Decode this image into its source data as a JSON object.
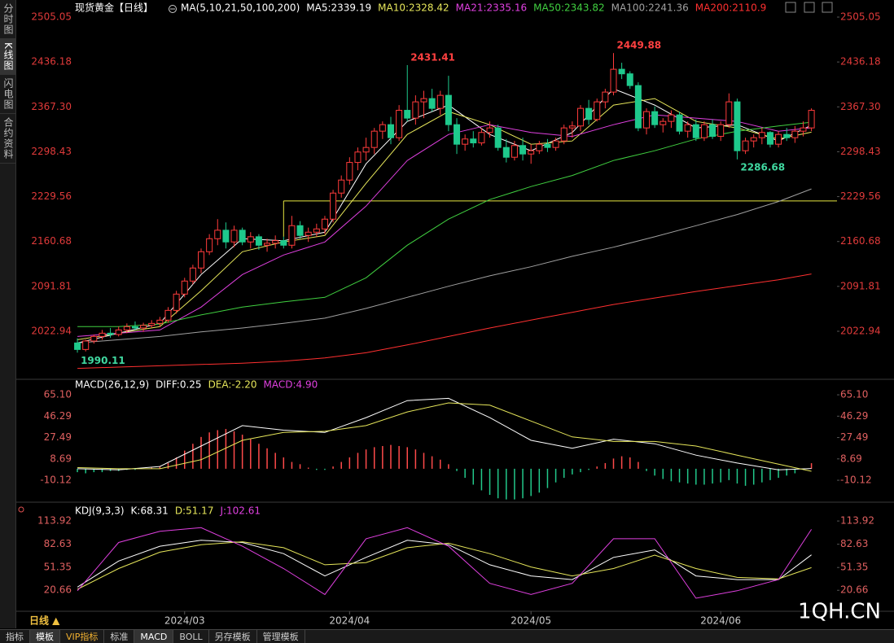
{
  "ui": {
    "sidebar_tabs": [
      "分时图",
      "K线图",
      "闪电图",
      "合约资料"
    ],
    "period_button": "日线 ▲",
    "bottom_tabs": [
      "指标",
      "模板",
      "VIP指标",
      "标准",
      "MACD",
      "BOLL",
      "另存模板",
      "管理模板"
    ],
    "watermark": "1QH.CN"
  },
  "chart_data": [
    {
      "type": "candlestick",
      "title": "现货黄金【日线】",
      "indicator": "MA(5,10,21,50,100,200)",
      "up_color": "#ff3b3b",
      "down_color": "#1ec98c",
      "xlim": [
        -0.5,
        92.1
      ],
      "xticks": [
        {
          "value": 13,
          "label": "2024/03"
        },
        {
          "value": 33,
          "label": "2024/04"
        },
        {
          "value": 55,
          "label": "2024/05"
        },
        {
          "value": 78,
          "label": "2024/06"
        }
      ],
      "ylim": [
        1950.5,
        2518.8
      ],
      "yticks": [
        2505.05,
        2436.18,
        {
          "value": 2367.3,
          "label": "2367.30"
        },
        2298.43,
        2229.56,
        2160.68,
        2091.81,
        2022.94
      ],
      "open": [
        2005,
        1995,
        2008,
        2015,
        2020,
        2018,
        2025,
        2030,
        2028,
        2032,
        2035,
        2040,
        2055,
        2080,
        2100,
        2120,
        2145,
        2165,
        2178,
        2160,
        2178,
        2160,
        2168,
        2155,
        2158,
        2162,
        2155,
        2185,
        2170,
        2175,
        2180,
        2195,
        2235,
        2255,
        2282,
        2298,
        2305,
        2330,
        2340,
        2320,
        2362,
        2350,
        2375,
        2380,
        2365,
        2385,
        2340,
        2310,
        2318,
        2312,
        2328,
        2335,
        2305,
        2290,
        2308,
        2295,
        2300,
        2310,
        2305,
        2315,
        2335,
        2338,
        2365,
        2348,
        2375,
        2390,
        2425,
        2418,
        2400,
        2335,
        2360,
        2340,
        2345,
        2355,
        2330,
        2340,
        2320,
        2340,
        2322,
        2340,
        2375,
        2300,
        2315,
        2320,
        2328,
        2310,
        2325,
        2320,
        2330,
        2335
      ],
      "high": [
        2012,
        2010,
        2018,
        2025,
        2028,
        2030,
        2035,
        2038,
        2036,
        2040,
        2045,
        2060,
        2085,
        2105,
        2125,
        2150,
        2172,
        2195,
        2190,
        2185,
        2182,
        2175,
        2172,
        2165,
        2170,
        2168,
        2200,
        2192,
        2182,
        2188,
        2200,
        2240,
        2262,
        2290,
        2305,
        2320,
        2335,
        2345,
        2352,
        2370,
        2431.41,
        2385,
        2392,
        2395,
        2392,
        2415,
        2350,
        2325,
        2330,
        2335,
        2345,
        2340,
        2318,
        2315,
        2320,
        2310,
        2315,
        2318,
        2320,
        2340,
        2345,
        2370,
        2378,
        2380,
        2395,
        2449.88,
        2435,
        2422,
        2405,
        2365,
        2368,
        2350,
        2362,
        2360,
        2345,
        2348,
        2345,
        2348,
        2345,
        2388,
        2380,
        2320,
        2325,
        2335,
        2330,
        2330,
        2335,
        2338,
        2345,
        2365
      ],
      "low": [
        1990.11,
        1992,
        2004,
        2010,
        2013,
        2015,
        2020,
        2024,
        2022,
        2028,
        2030,
        2036,
        2050,
        2075,
        2095,
        2112,
        2140,
        2155,
        2150,
        2152,
        2155,
        2150,
        2148,
        2145,
        2150,
        2150,
        2150,
        2165,
        2160,
        2168,
        2172,
        2190,
        2228,
        2248,
        2270,
        2285,
        2295,
        2318,
        2310,
        2315,
        2345,
        2340,
        2350,
        2360,
        2355,
        2330,
        2295,
        2300,
        2305,
        2308,
        2320,
        2300,
        2282,
        2285,
        2285,
        2280,
        2295,
        2298,
        2300,
        2310,
        2320,
        2330,
        2340,
        2345,
        2365,
        2385,
        2410,
        2395,
        2330,
        2325,
        2335,
        2328,
        2335,
        2325,
        2320,
        2315,
        2315,
        2318,
        2315,
        2335,
        2286.68,
        2295,
        2305,
        2310,
        2305,
        2305,
        2315,
        2312,
        2322,
        2330
      ],
      "close": [
        1995,
        2008,
        2015,
        2020,
        2018,
        2025,
        2030,
        2028,
        2032,
        2035,
        2040,
        2055,
        2080,
        2100,
        2120,
        2145,
        2165,
        2178,
        2160,
        2178,
        2160,
        2168,
        2155,
        2158,
        2162,
        2155,
        2185,
        2170,
        2175,
        2180,
        2195,
        2235,
        2255,
        2282,
        2298,
        2305,
        2330,
        2340,
        2320,
        2362,
        2350,
        2375,
        2380,
        2365,
        2385,
        2340,
        2310,
        2318,
        2312,
        2328,
        2335,
        2305,
        2290,
        2308,
        2295,
        2300,
        2310,
        2305,
        2315,
        2335,
        2338,
        2365,
        2348,
        2375,
        2390,
        2425,
        2418,
        2400,
        2335,
        2360,
        2340,
        2345,
        2355,
        2330,
        2340,
        2320,
        2340,
        2322,
        2340,
        2375,
        2300,
        2315,
        2320,
        2328,
        2310,
        2325,
        2320,
        2330,
        2335,
        2362
      ],
      "labeled_points": [
        {
          "field": "high",
          "index": 40,
          "color": "#ff4040"
        },
        {
          "field": "high",
          "index": 65,
          "color": "#ff4040"
        },
        {
          "field": "low",
          "index": 80,
          "color": "#40d8a0"
        },
        {
          "field": "low",
          "index": 0,
          "color": "#40d8a0"
        }
      ],
      "level_line": {
        "value": 2223,
        "from": 25,
        "color": "#e6e640"
      },
      "ma_x": [
        0,
        5,
        10,
        15,
        20,
        25,
        30,
        35,
        40,
        45,
        50,
        55,
        60,
        65,
        70,
        75,
        80,
        85,
        89
      ],
      "ma": [
        {
          "name": "MA5:2339.19",
          "color": "#ffffff",
          "values": [
            2005,
            2020,
            2035,
            2110,
            2165,
            2162,
            2175,
            2280,
            2345,
            2370,
            2325,
            2300,
            2328,
            2395,
            2370,
            2335,
            2340,
            2315,
            2339.19
          ]
        },
        {
          "name": "MA10:2328.42",
          "color": "#e6e65a",
          "values": [
            2010,
            2020,
            2030,
            2085,
            2145,
            2160,
            2170,
            2250,
            2325,
            2360,
            2340,
            2310,
            2315,
            2370,
            2380,
            2345,
            2335,
            2318,
            2328.42
          ]
        },
        {
          "name": "MA21:2335.16",
          "color": "#e040e0",
          "values": [
            2015,
            2020,
            2025,
            2060,
            2110,
            2140,
            2160,
            2215,
            2285,
            2325,
            2340,
            2328,
            2322,
            2340,
            2355,
            2350,
            2345,
            2330,
            2335.16
          ]
        },
        {
          "name": "MA50:2343.82",
          "color": "#40d040",
          "values": [
            2030,
            2030,
            2034,
            2048,
            2060,
            2068,
            2075,
            2105,
            2155,
            2195,
            2225,
            2245,
            2262,
            2285,
            2300,
            2318,
            2330,
            2338,
            2343.82
          ]
        },
        {
          "name": "MA100:2241.36",
          "color": "#a0a0a0",
          "values": [
            2005,
            2010,
            2015,
            2022,
            2028,
            2035,
            2043,
            2058,
            2075,
            2092,
            2108,
            2122,
            2138,
            2152,
            2168,
            2185,
            2202,
            2222,
            2241.36
          ]
        },
        {
          "name": "MA200:2110.9",
          "color": "#ff3030",
          "values": [
            1966,
            1968,
            1970,
            1972,
            1974,
            1977,
            1982,
            1990,
            2002,
            2015,
            2028,
            2040,
            2052,
            2064,
            2074,
            2084,
            2093,
            2102,
            2110.9
          ]
        }
      ]
    },
    {
      "type": "macd",
      "title": "MACD(26,12,9)",
      "xlim": [
        -0.5,
        92.1
      ],
      "ylim": [
        -28,
        75.9
      ],
      "yticks": [
        {
          "value": 65.1,
          "label": "65.10"
        },
        46.29,
        27.49,
        8.69,
        -10.12
      ],
      "up_color": "#ff4a4a",
      "down_color": "#22c88a",
      "x": [
        0,
        5,
        10,
        15,
        20,
        25,
        30,
        35,
        40,
        45,
        50,
        55,
        60,
        65,
        70,
        75,
        80,
        85,
        89
      ],
      "series": [
        {
          "name": "DIFF:0.25",
          "color": "#ffffff",
          "values": [
            0,
            -1,
            2,
            20,
            38,
            34,
            32,
            45,
            60,
            62,
            45,
            25,
            18,
            26,
            22,
            12,
            5,
            -1,
            0.25
          ]
        },
        {
          "name": "DEA:-2.20",
          "color": "#e6e65a",
          "values": [
            1,
            0,
            0,
            8,
            25,
            32,
            33,
            38,
            50,
            58,
            56,
            42,
            28,
            24,
            24,
            20,
            12,
            4,
            -2.2
          ]
        }
      ],
      "histogram": {
        "name": "MACD:4.90",
        "color": "#e040e0",
        "values": [
          -3,
          -4,
          -3,
          -3,
          -2,
          -2,
          -1,
          -1,
          0,
          1,
          2,
          5,
          10,
          16,
          22,
          28,
          32,
          34,
          35,
          33,
          30,
          26,
          22,
          18,
          14,
          10,
          6,
          4,
          1,
          -1,
          -1,
          2,
          6,
          10,
          14,
          17,
          19,
          20,
          21,
          20,
          19,
          17,
          14,
          11,
          8,
          4,
          -2,
          -8,
          -14,
          -19,
          -23,
          -26,
          -27,
          -27,
          -26,
          -24,
          -21,
          -17,
          -12,
          -8,
          -5,
          -3,
          -1,
          2,
          5,
          9,
          11,
          10,
          6,
          -2,
          -6,
          -9,
          -11,
          -12,
          -13,
          -14,
          -14,
          -13,
          -12,
          -10,
          -13,
          -15,
          -14,
          -12,
          -10,
          -8,
          -6,
          -4,
          -1,
          4.9
        ]
      }
    },
    {
      "type": "line",
      "title": "KDJ(9,3,3)",
      "xlim": [
        -0.5,
        92.1
      ],
      "ylim": [
        -1,
        125
      ],
      "yticks": [
        113.92,
        82.63,
        51.35,
        20.66
      ],
      "x": [
        0,
        5,
        10,
        15,
        20,
        25,
        30,
        35,
        40,
        45,
        50,
        55,
        60,
        65,
        70,
        75,
        80,
        85,
        89
      ],
      "series": [
        {
          "name": "K:68.31",
          "color": "#ffffff",
          "values": [
            25,
            60,
            80,
            88,
            85,
            70,
            40,
            65,
            88,
            82,
            55,
            40,
            35,
            65,
            75,
            40,
            35,
            35,
            68.31
          ]
        },
        {
          "name": "D:51.17",
          "color": "#e6e65a",
          "values": [
            22,
            50,
            72,
            82,
            86,
            78,
            55,
            58,
            78,
            84,
            70,
            52,
            40,
            50,
            68,
            50,
            38,
            36,
            51.17
          ]
        },
        {
          "name": "J:102.61",
          "color": "#e040e0",
          "values": [
            20,
            85,
            100,
            105,
            80,
            50,
            15,
            90,
            105,
            80,
            30,
            15,
            30,
            90,
            90,
            10,
            20,
            35,
            102.61
          ]
        }
      ]
    }
  ]
}
